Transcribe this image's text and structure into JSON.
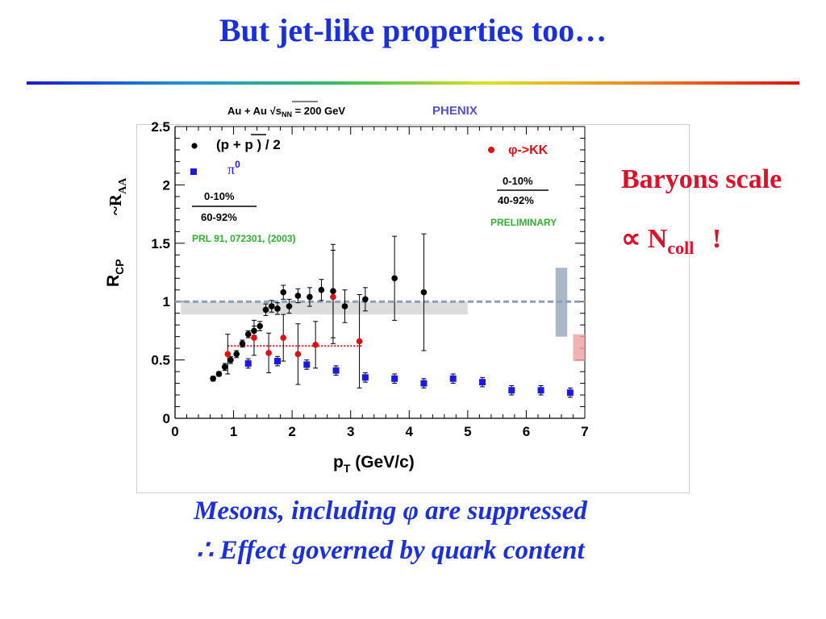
{
  "slide": {
    "title": "But jet-like properties too…",
    "side_line1": "Baryons scale",
    "side_prop": "∝ N",
    "side_sub": "coll",
    "side_excl": "!",
    "caption_line1": "Mesons, including φ are suppressed",
    "caption_line2": "∴ Effect governed by quark content"
  },
  "chart_data": {
    "type": "scatter",
    "header_left": "Au + Au  √s",
    "header_sub": "NN",
    "header_energy": " = 200 GeV",
    "experiment": "PHENIX",
    "xlabel": "p",
    "xlabel_sub": "T",
    "xlabel_units": " (GeV/c)",
    "ylabel": "R",
    "ylabel_sub": "CP",
    "ylabel_alt": "~R",
    "ylabel_alt_sub": "AA",
    "xlim": [
      0,
      7
    ],
    "ylim": [
      0,
      2.5
    ],
    "x_ticks": [
      "0",
      "1",
      "2",
      "3",
      "4",
      "5",
      "6",
      "7"
    ],
    "y_ticks": [
      "0",
      "0.5",
      "1",
      "1.5",
      "2",
      "2.5"
    ],
    "legend_left": {
      "proton": "(p + p )  / 2",
      "pi0_base": "π",
      "pi0_sup": "0",
      "cent_num": "0-10%",
      "cent_den": "60-92%",
      "reference": "PRL 91, 072301, (2003)"
    },
    "legend_right": {
      "phi": "φ->KK",
      "cent_num": "0-10%",
      "cent_den": "40-92%",
      "status": "PRELIMINARY"
    },
    "colors": {
      "proton": "#000000",
      "pi0": "#1a1ae8",
      "phi": "#e01010",
      "reference_text": "#30b030",
      "experiment_text": "#5050d0"
    },
    "series": [
      {
        "name": "(p + p ) / 2",
        "marker": "circle",
        "color": "#000000",
        "x": [
          0.65,
          0.75,
          0.85,
          0.95,
          1.05,
          1.15,
          1.25,
          1.35,
          1.45,
          1.55,
          1.65,
          1.75,
          1.85,
          1.95,
          2.1,
          2.3,
          2.5,
          2.7,
          2.9,
          3.25,
          3.75,
          4.25
        ],
        "y": [
          0.34,
          0.38,
          0.44,
          0.5,
          0.55,
          0.64,
          0.72,
          0.75,
          0.79,
          0.93,
          0.96,
          0.94,
          1.08,
          0.96,
          1.05,
          1.04,
          1.1,
          1.09,
          0.96,
          1.02,
          1.2,
          1.08
        ],
        "err": [
          0.02,
          0.02,
          0.03,
          0.03,
          0.03,
          0.03,
          0.03,
          0.04,
          0.04,
          0.05,
          0.05,
          0.05,
          0.06,
          0.06,
          0.06,
          0.08,
          0.09,
          0.4,
          0.14,
          0.1,
          0.36,
          0.5
        ]
      },
      {
        "name": "π0",
        "marker": "square",
        "color": "#1a1ae8",
        "x": [
          1.25,
          1.75,
          2.25,
          2.75,
          3.25,
          3.75,
          4.25,
          4.75,
          5.25,
          5.75,
          6.25,
          6.75
        ],
        "y": [
          0.47,
          0.49,
          0.46,
          0.41,
          0.35,
          0.34,
          0.3,
          0.34,
          0.31,
          0.24,
          0.24,
          0.22
        ],
        "err": [
          0.04,
          0.04,
          0.04,
          0.04,
          0.04,
          0.04,
          0.04,
          0.04,
          0.04,
          0.04,
          0.04,
          0.04
        ]
      },
      {
        "name": "φ->KK",
        "marker": "circle",
        "color": "#e01010",
        "x": [
          0.9,
          1.35,
          1.6,
          1.85,
          2.1,
          2.4,
          2.7,
          3.15
        ],
        "y": [
          0.55,
          0.69,
          0.56,
          0.69,
          0.55,
          0.63,
          1.04,
          0.66
        ],
        "err": [
          0.17,
          0.15,
          0.17,
          0.2,
          0.26,
          0.2,
          0.4,
          0.4
        ]
      }
    ],
    "reference_lines": [
      {
        "y": 1.0,
        "x_range": [
          0,
          7
        ],
        "style": "dashed",
        "color": "#8aa0b8"
      },
      {
        "y": 0.62,
        "x_range": [
          0.9,
          3.2
        ],
        "style": "dotted",
        "color": "#e01010"
      }
    ],
    "bands": [
      {
        "x_range": [
          0.1,
          5.0
        ],
        "y_range": [
          0.89,
          1.0
        ],
        "color": "#dcdcdc"
      },
      {
        "x_range": [
          6.5,
          6.7
        ],
        "y_range": [
          0.7,
          1.29
        ],
        "color": "#a8b8c8"
      },
      {
        "x_range": [
          6.8,
          7.0
        ],
        "y_range": [
          0.49,
          0.72
        ],
        "color": "#f0a0a0"
      }
    ]
  }
}
